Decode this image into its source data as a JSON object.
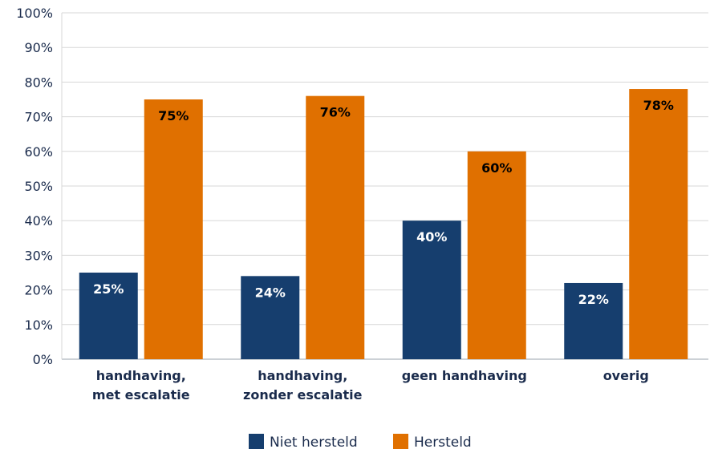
{
  "chart_data": {
    "type": "bar",
    "title": "",
    "xlabel": "",
    "ylabel": "",
    "ylim": [
      0,
      100
    ],
    "y_ticks": [
      "0%",
      "10%",
      "20%",
      "30%",
      "40%",
      "50%",
      "60%",
      "70%",
      "80%",
      "90%",
      "100%"
    ],
    "y_tick_values": [
      0,
      10,
      20,
      30,
      40,
      50,
      60,
      70,
      80,
      90,
      100
    ],
    "grid": true,
    "legend_position": "bottom",
    "categories": [
      [
        "handhaving,",
        "met escalatie"
      ],
      [
        "handhaving,",
        "zonder escalatie"
      ],
      [
        "geen handhaving"
      ],
      [
        "overig"
      ]
    ],
    "series": [
      {
        "name": "Niet hersteld",
        "color": "#163e6e",
        "label_color": "#ffffff",
        "values": [
          25,
          24,
          40,
          22
        ],
        "labels": [
          "25%",
          "24%",
          "40%",
          "22%"
        ]
      },
      {
        "name": "Hersteld",
        "color": "#e07000",
        "label_color": "#000000",
        "values": [
          75,
          76,
          60,
          78
        ],
        "labels": [
          "75%",
          "76%",
          "60%",
          "78%"
        ]
      }
    ]
  }
}
